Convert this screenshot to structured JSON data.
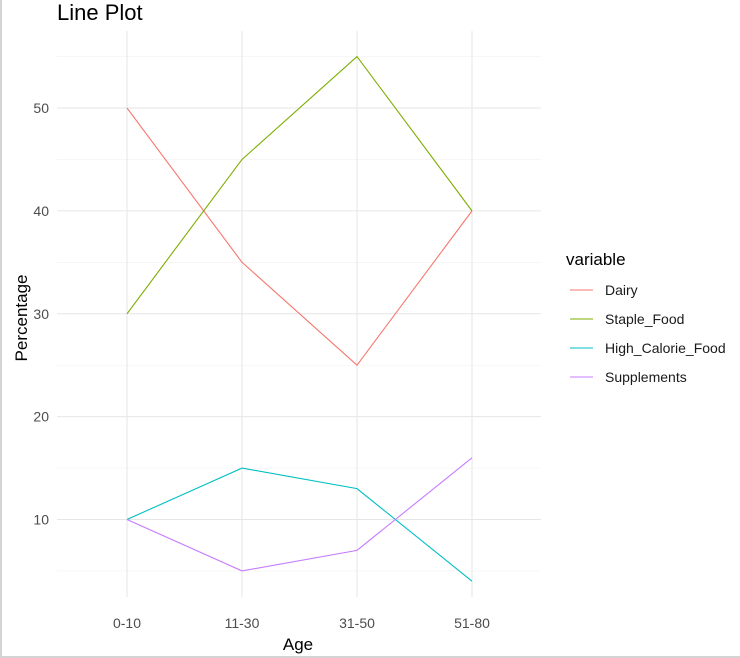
{
  "chart_data": {
    "type": "line",
    "title": "Line Plot",
    "xlabel": "Age",
    "ylabel": "Percentage",
    "categories": [
      "0-10",
      "11-30",
      "31-50",
      "51-80"
    ],
    "ylim": [
      3,
      56
    ],
    "yticks": [
      10,
      20,
      30,
      40,
      50
    ],
    "grid": true,
    "legend_title": "variable",
    "legend_position": "right",
    "series": [
      {
        "name": "Dairy",
        "color": "#F8766D",
        "values": [
          50,
          35,
          25,
          40
        ]
      },
      {
        "name": "Staple_Food",
        "color": "#7CAE00",
        "values": [
          30,
          45,
          55,
          40
        ]
      },
      {
        "name": "High_Calorie_Food",
        "color": "#00BFC4",
        "values": [
          10,
          15,
          13,
          4
        ]
      },
      {
        "name": "Supplements",
        "color": "#C77CFF",
        "values": [
          10,
          5,
          7,
          16
        ]
      }
    ]
  }
}
